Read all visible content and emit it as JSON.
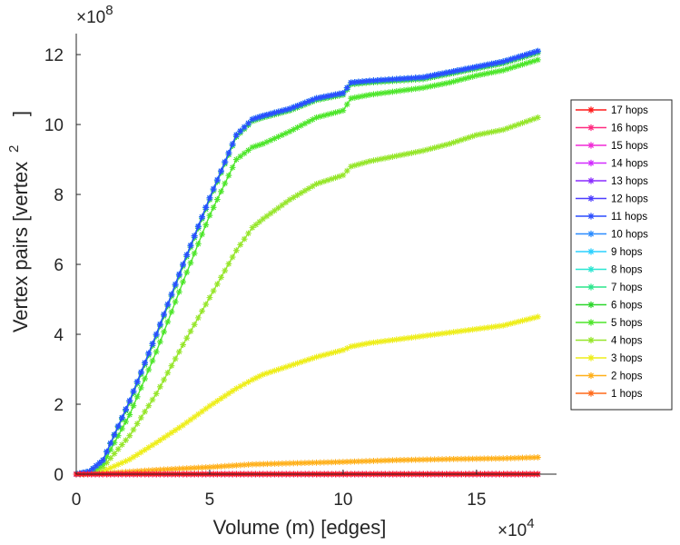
{
  "chart_data": {
    "type": "line",
    "xlabel": "Volume (m) [edges]",
    "ylabel": "Vertex pairs [vertex",
    "ylabel_sup": "2",
    "ylabel_close": "]",
    "x_multiplier": {
      "base": "×10",
      "exp": "4"
    },
    "y_multiplier": {
      "base": "×10",
      "exp": "8"
    },
    "xlim": [
      0,
      18
    ],
    "ylim": [
      0,
      12.6
    ],
    "x_ticks": [
      0,
      5,
      10,
      15
    ],
    "x_tick_labels": [
      "0",
      "5",
      "10",
      "15"
    ],
    "y_ticks": [
      0,
      2,
      4,
      6,
      8,
      10,
      12
    ],
    "y_tick_labels": [
      "0",
      "2",
      "4",
      "6",
      "8",
      "10",
      "12"
    ],
    "legend_position": "right",
    "series": [
      {
        "name": "17 hops",
        "color": "#ff1a1a",
        "x": [
          0,
          17.3
        ],
        "y": [
          0,
          0
        ]
      },
      {
        "name": "16 hops",
        "color": "#ff2b80",
        "x": [
          0,
          17.3
        ],
        "y": [
          0,
          0
        ]
      },
      {
        "name": "15 hops",
        "color": "#f02bd6",
        "x": [
          0,
          17.3
        ],
        "y": [
          0,
          0
        ]
      },
      {
        "name": "14 hops",
        "color": "#d22bff",
        "x": [
          0,
          17.3
        ],
        "y": [
          0,
          0
        ]
      },
      {
        "name": "13 hops",
        "color": "#8a2bff",
        "x": [
          0,
          17.3
        ],
        "y": [
          0,
          0
        ]
      },
      {
        "name": "12 hops",
        "color": "#4d3dff",
        "x": [
          0,
          17.3
        ],
        "y": [
          0,
          0
        ]
      },
      {
        "name": "11 hops",
        "color": "#2b4dff",
        "x": [
          0,
          0.5,
          1,
          2,
          3,
          4,
          5,
          6,
          6.6,
          7,
          8,
          9,
          10,
          10.3,
          11,
          12,
          13,
          14,
          15,
          16,
          17.3
        ],
        "y": [
          0,
          0.08,
          0.4,
          2.1,
          4.0,
          6.0,
          7.9,
          9.7,
          10.15,
          10.25,
          10.45,
          10.75,
          10.9,
          11.2,
          11.25,
          11.3,
          11.35,
          11.5,
          11.65,
          11.8,
          12.1
        ]
      },
      {
        "name": "10 hops",
        "color": "#2b8cff",
        "x": [
          0,
          0.5,
          1,
          2,
          3,
          4,
          5,
          6,
          6.6,
          7,
          8,
          9,
          10,
          10.3,
          11,
          12,
          13,
          14,
          15,
          16,
          17.3
        ],
        "y": [
          0,
          0.08,
          0.4,
          2.1,
          4.0,
          6.0,
          7.9,
          9.7,
          10.15,
          10.25,
          10.45,
          10.75,
          10.9,
          11.2,
          11.25,
          11.3,
          11.35,
          11.5,
          11.65,
          11.8,
          12.1
        ]
      },
      {
        "name": "9 hops",
        "color": "#2bd0ff",
        "x": [
          0,
          0.5,
          1,
          2,
          3,
          4,
          5,
          6,
          6.6,
          7,
          8,
          9,
          10,
          10.3,
          11,
          12,
          13,
          14,
          15,
          16,
          17.3
        ],
        "y": [
          0,
          0.08,
          0.4,
          2.1,
          4.0,
          6.0,
          7.9,
          9.7,
          10.15,
          10.25,
          10.45,
          10.75,
          10.9,
          11.2,
          11.25,
          11.3,
          11.35,
          11.5,
          11.65,
          11.8,
          12.1
        ]
      },
      {
        "name": "8 hops",
        "color": "#2be6d2",
        "x": [
          0,
          0.5,
          1,
          2,
          3,
          4,
          5,
          6,
          6.6,
          7,
          8,
          9,
          10,
          10.3,
          11,
          12,
          13,
          14,
          15,
          16,
          17.3
        ],
        "y": [
          0,
          0.08,
          0.4,
          2.1,
          4.0,
          6.0,
          7.9,
          9.7,
          10.15,
          10.25,
          10.45,
          10.75,
          10.9,
          11.2,
          11.25,
          11.3,
          11.35,
          11.5,
          11.65,
          11.8,
          12.1
        ]
      },
      {
        "name": "7 hops",
        "color": "#2be68c",
        "x": [
          0,
          0.5,
          1,
          2,
          3,
          4,
          5,
          6,
          6.6,
          7,
          8,
          9,
          10,
          10.3,
          11,
          12,
          13,
          14,
          15,
          16,
          17.3
        ],
        "y": [
          0,
          0.08,
          0.4,
          2.1,
          4.0,
          6.0,
          7.9,
          9.7,
          10.15,
          10.25,
          10.45,
          10.75,
          10.9,
          11.2,
          11.25,
          11.3,
          11.35,
          11.5,
          11.65,
          11.8,
          12.1
        ]
      },
      {
        "name": "6 hops",
        "color": "#2bd62b",
        "x": [
          0,
          0.5,
          1,
          2,
          3,
          4,
          5,
          6,
          6.6,
          7,
          8,
          9,
          10,
          10.3,
          11,
          12,
          13,
          14,
          15,
          16,
          17.3
        ],
        "y": [
          0,
          0.08,
          0.4,
          2.05,
          3.95,
          5.95,
          7.85,
          9.65,
          10.1,
          10.2,
          10.4,
          10.7,
          10.85,
          11.15,
          11.2,
          11.25,
          11.3,
          11.45,
          11.6,
          11.75,
          12.05
        ]
      },
      {
        "name": "5 hops",
        "color": "#4ee62b",
        "x": [
          0,
          0.5,
          1,
          2,
          3,
          4,
          5,
          6,
          6.6,
          7,
          8,
          9,
          10,
          10.3,
          11,
          12,
          13,
          14,
          15,
          16,
          17.3
        ],
        "y": [
          0,
          0.06,
          0.3,
          1.7,
          3.5,
          5.5,
          7.4,
          9.0,
          9.35,
          9.45,
          9.8,
          10.2,
          10.4,
          10.75,
          10.85,
          10.95,
          11.05,
          11.2,
          11.4,
          11.55,
          11.85
        ]
      },
      {
        "name": "4 hops",
        "color": "#96e62b",
        "x": [
          0,
          0.5,
          1,
          2,
          3,
          4,
          5,
          6,
          6.6,
          7,
          8,
          9,
          10,
          10.3,
          11,
          12,
          13,
          14,
          15,
          16,
          17.3
        ],
        "y": [
          0,
          0.04,
          0.2,
          1.1,
          2.3,
          3.7,
          5.05,
          6.4,
          7.05,
          7.3,
          7.85,
          8.3,
          8.55,
          8.8,
          8.95,
          9.1,
          9.25,
          9.45,
          9.7,
          9.85,
          10.2
        ]
      },
      {
        "name": "3 hops",
        "color": "#eeee1a",
        "x": [
          0,
          0.5,
          1,
          2,
          3,
          4,
          5,
          6,
          6.6,
          7,
          8,
          9,
          10,
          10.3,
          11,
          12,
          13,
          14,
          15,
          16,
          17.3
        ],
        "y": [
          0,
          0.01,
          0.08,
          0.42,
          0.9,
          1.4,
          1.95,
          2.45,
          2.7,
          2.85,
          3.1,
          3.35,
          3.55,
          3.65,
          3.75,
          3.85,
          3.95,
          4.05,
          4.15,
          4.25,
          4.5
        ]
      },
      {
        "name": "2 hops",
        "color": "#ffb01a",
        "x": [
          0,
          1,
          2,
          3,
          4,
          5,
          6,
          6.6,
          8,
          10,
          12,
          14,
          16,
          17.3
        ],
        "y": [
          0,
          0.02,
          0.07,
          0.12,
          0.16,
          0.2,
          0.25,
          0.28,
          0.31,
          0.35,
          0.4,
          0.43,
          0.45,
          0.48
        ]
      },
      {
        "name": "1 hops",
        "color": "#ff6a1a",
        "x": [
          0,
          17.3
        ],
        "y": [
          0,
          0.005
        ]
      }
    ]
  }
}
